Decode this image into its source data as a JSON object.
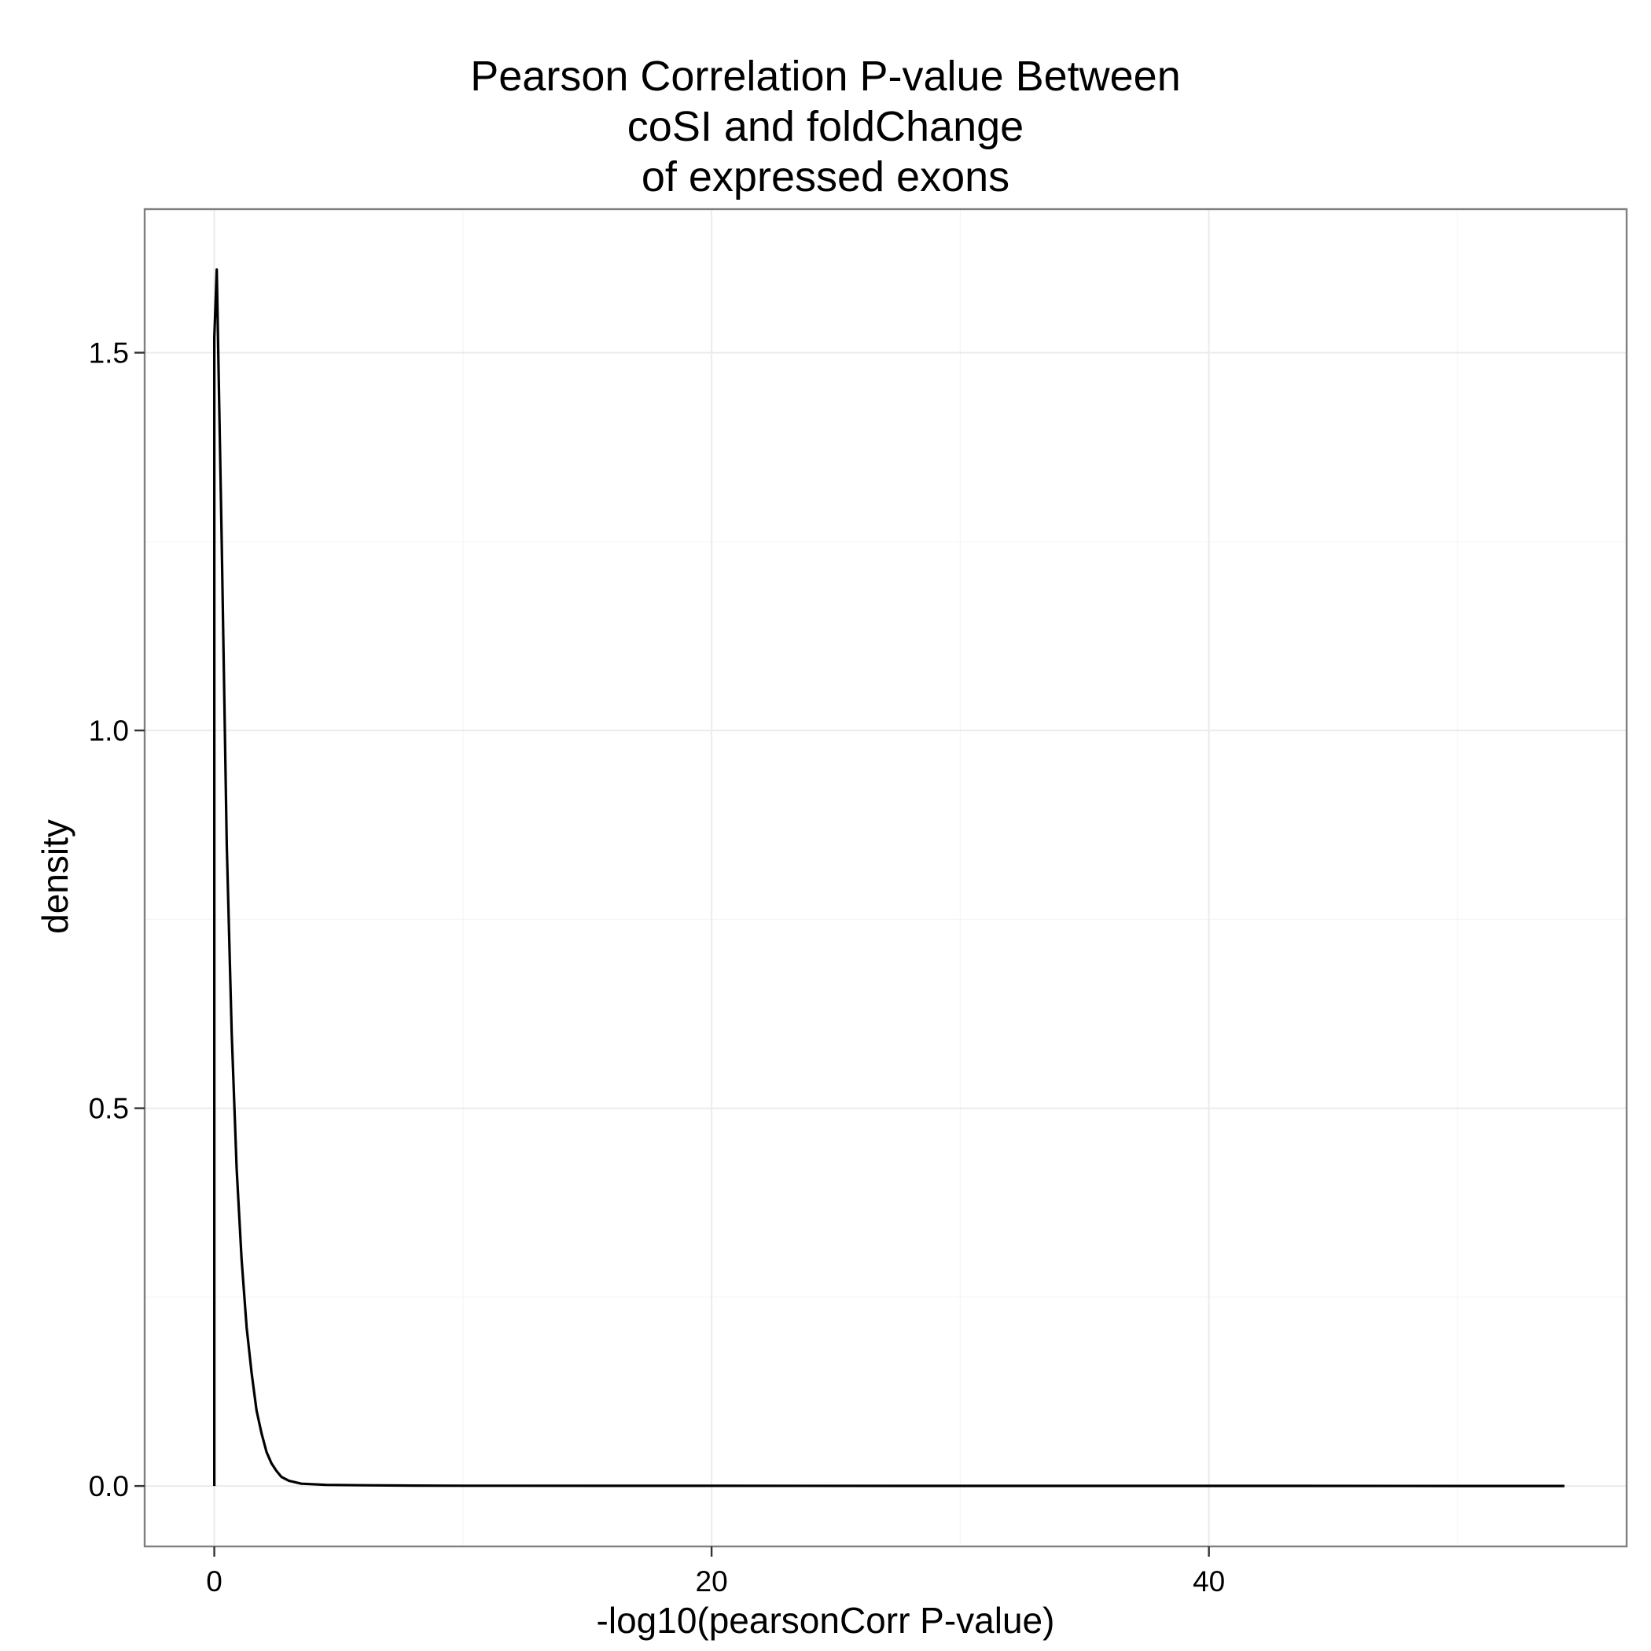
{
  "chart_data": {
    "type": "line",
    "title_lines": [
      "Pearson Correlation P-value Between",
      "coSI and foldChange",
      "of expressed exons"
    ],
    "xlabel": "-log10(pearsonCorr P-value)",
    "ylabel": "density",
    "xlim": [
      -2.8,
      56.8
    ],
    "ylim": [
      -0.08,
      1.69
    ],
    "x_ticks": [
      0,
      20,
      40
    ],
    "x_tick_labels": [
      "0",
      "20",
      "40"
    ],
    "x_minor_ticks": [
      10,
      30,
      50
    ],
    "y_ticks": [
      0.0,
      0.5,
      1.0,
      1.5
    ],
    "y_tick_labels": [
      "0.0",
      "0.5",
      "1.0",
      "1.5"
    ],
    "y_minor_ticks": [
      0.25,
      0.75,
      1.25
    ],
    "grid": true,
    "theme": "bw",
    "series": [
      {
        "x": [
          0.0,
          0.0,
          0.1,
          0.3,
          0.5,
          0.7,
          0.9,
          1.1,
          1.3,
          1.5,
          1.7,
          1.9,
          2.1,
          2.3,
          2.5,
          2.7,
          3.0,
          3.5,
          4.5,
          6,
          8,
          10,
          20,
          30,
          40,
          50,
          54.3,
          54.3
        ],
        "y": [
          0.0,
          1.52,
          1.61,
          1.25,
          0.85,
          0.6,
          0.42,
          0.3,
          0.21,
          0.15,
          0.1,
          0.07,
          0.045,
          0.03,
          0.02,
          0.012,
          0.007,
          0.003,
          0.0015,
          0.001,
          0.0005,
          0.0003,
          0.0002,
          0.0001,
          0.0001,
          5e-05,
          0.0,
          0.0
        ]
      }
    ],
    "colors": {
      "line": "#000000",
      "panel_border": "#7f7f7f",
      "grid_major": "#ebebeb",
      "grid_minor": "#f5f5f5",
      "tick_text": "#000000"
    }
  }
}
